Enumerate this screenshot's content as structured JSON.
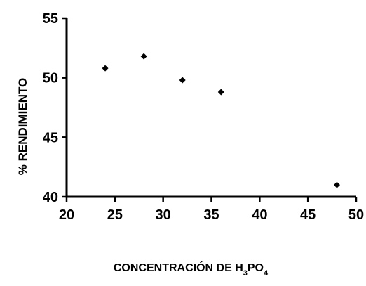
{
  "chart_data": {
    "type": "scatter",
    "title": "",
    "xlabel": {
      "main": "CONCENTRACIÓN DE H",
      "sub1": "3",
      "middle": "PO",
      "sub2": "4"
    },
    "ylabel": "% RENDIMIENTO",
    "xlim": [
      20,
      50
    ],
    "ylim": [
      40,
      55
    ],
    "xticks": [
      20,
      25,
      30,
      35,
      40,
      45,
      50
    ],
    "yticks": [
      40,
      45,
      50,
      55
    ],
    "grid": false,
    "legend": "none",
    "marker": "diamond",
    "colors": {
      "marker": "#000000",
      "axis": "#000000",
      "background": "#ffffff"
    },
    "series": [
      {
        "x": [
          24,
          28,
          32,
          36,
          48
        ],
        "y": [
          50.8,
          51.8,
          49.8,
          48.8,
          41.0
        ]
      }
    ]
  }
}
